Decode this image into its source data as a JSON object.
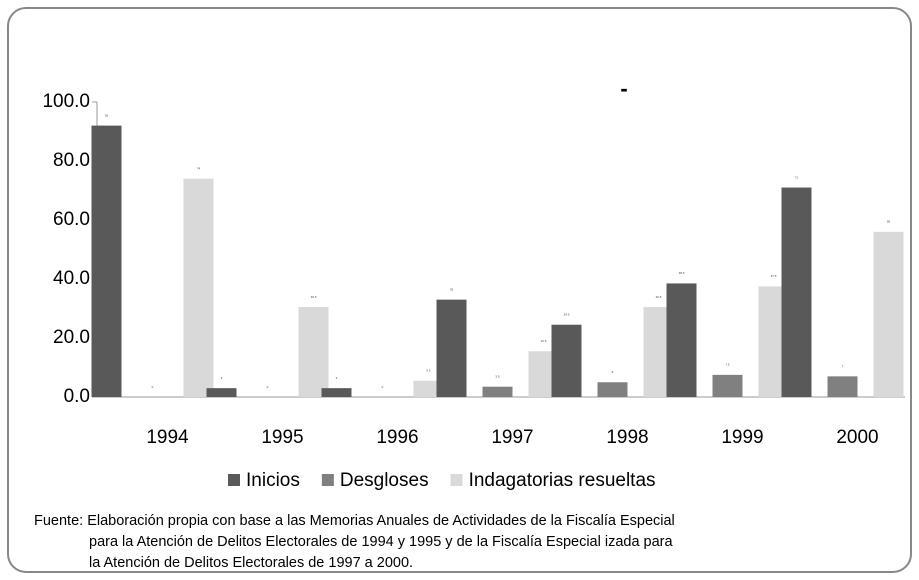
{
  "chart_data": {
    "type": "bar",
    "title": "-",
    "categories": [
      "1994",
      "1995",
      "1996",
      "1997",
      "1998",
      "1999",
      "2000"
    ],
    "series": [
      {
        "name": "Inicios",
        "color": "#595959",
        "values": [
          92,
          3,
          3,
          33,
          24.5,
          38.5,
          71
        ]
      },
      {
        "name": "Desgloses",
        "color": "#808080",
        "values": [
          0,
          0,
          0,
          3.5,
          5,
          7.5,
          7
        ]
      },
      {
        "name": "Indagatorias resueltas",
        "color": "#d9d9d9",
        "values": [
          74,
          30.5,
          5.5,
          15.5,
          30.5,
          37.5,
          56
        ]
      }
    ],
    "ylim": [
      0,
      100
    ],
    "yticks": [
      {
        "value": 0,
        "label": "0.0"
      },
      {
        "value": 20,
        "label": "20.0"
      },
      {
        "value": 40,
        "label": "40.0"
      },
      {
        "value": 60,
        "label": "60.0"
      },
      {
        "value": 80,
        "label": "80.0"
      },
      {
        "value": 100,
        "label": "100.0"
      }
    ],
    "grid": false,
    "legend": "bottom",
    "note": [
      "Fuente: Elaboración propia con base a las Memorias Anuales de Actividades de la Fiscalía Especial",
      "para la Atención de Delitos Electorales de 1994 y 1995 y de la Fiscalía Especial izada para",
      "la Atención de Delitos Electorales de 1997 a 2000."
    ]
  }
}
